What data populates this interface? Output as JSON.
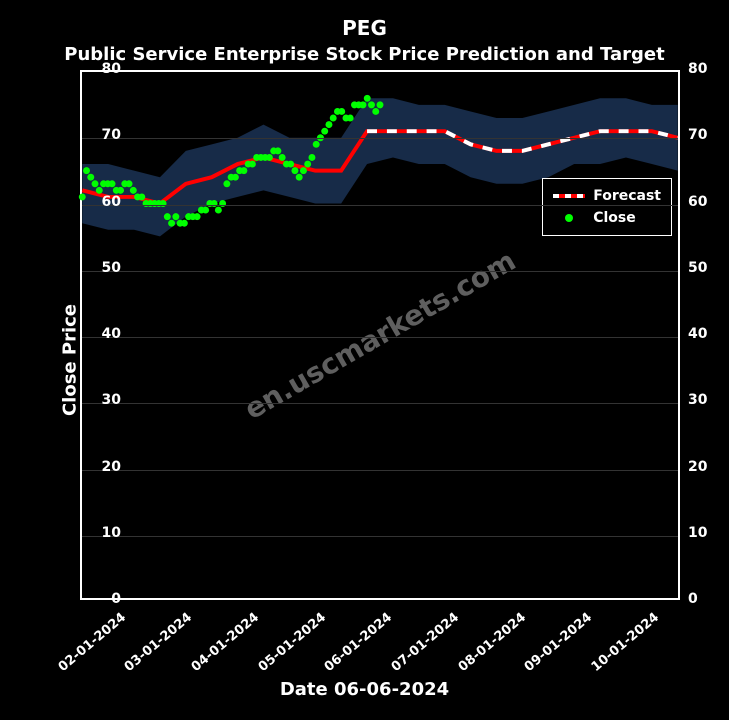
{
  "suptitle": "PEG",
  "title": "Public Service Enterprise Stock Price Prediction and Target",
  "xlabel": "Date 06-06-2024",
  "ylabel": "Close Price",
  "watermark": "en.uscmarkets.com",
  "background_color": "#000000",
  "text_color": "#ffffff",
  "grid_color": "#333333",
  "suptitle_fontsize": 20,
  "title_fontsize": 18,
  "label_fontsize": 18,
  "tick_fontsize": 14,
  "ylim": [
    0,
    80
  ],
  "yticks": [
    0,
    10,
    20,
    30,
    40,
    50,
    60,
    70,
    80
  ],
  "xticks": [
    "02-01-2024",
    "03-01-2024",
    "04-01-2024",
    "05-01-2024",
    "06-01-2024",
    "07-01-2024",
    "08-01-2024",
    "09-01-2024",
    "10-01-2024"
  ],
  "legend": {
    "position": "right-mid",
    "items": [
      {
        "label": "Forecast",
        "type": "line",
        "color": "#ff0000",
        "dash_overlay": "#ffffff"
      },
      {
        "label": "Close",
        "type": "dot",
        "color": "#00ff00"
      }
    ]
  },
  "forecast_band": {
    "color": "#1a3050",
    "opacity": 0.9,
    "upper": [
      66,
      66,
      65,
      64,
      68,
      69,
      70,
      72,
      70,
      70,
      70,
      76,
      76,
      75,
      75,
      74,
      73,
      73,
      74,
      75,
      76,
      76,
      75,
      75
    ],
    "lower": [
      57,
      56,
      56,
      55,
      58,
      60,
      61,
      62,
      61,
      60,
      60,
      66,
      67,
      66,
      66,
      64,
      63,
      63,
      64,
      66,
      66,
      67,
      66,
      65
    ]
  },
  "forecast_line": {
    "color": "#ff0000",
    "dash_color": "#ffffff",
    "width": 4,
    "dash_start_index": 11,
    "y": [
      62,
      61,
      61,
      60,
      63,
      64,
      66,
      67,
      66,
      65,
      65,
      71,
      71,
      71,
      71,
      69,
      68,
      68,
      69,
      70,
      71,
      71,
      71,
      70
    ]
  },
  "close_series": {
    "color": "#00ff00",
    "marker_size": 3.5,
    "points": [
      [
        0,
        61
      ],
      [
        2,
        65
      ],
      [
        4,
        64
      ],
      [
        6,
        63
      ],
      [
        8,
        62
      ],
      [
        10,
        63
      ],
      [
        12,
        63
      ],
      [
        14,
        63
      ],
      [
        16,
        62
      ],
      [
        18,
        62
      ],
      [
        20,
        63
      ],
      [
        22,
        63
      ],
      [
        24,
        62
      ],
      [
        26,
        61
      ],
      [
        28,
        61
      ],
      [
        30,
        60
      ],
      [
        32,
        60
      ],
      [
        34,
        60
      ],
      [
        36,
        60
      ],
      [
        38,
        60
      ],
      [
        40,
        58
      ],
      [
        42,
        57
      ],
      [
        44,
        58
      ],
      [
        46,
        57
      ],
      [
        48,
        57
      ],
      [
        50,
        58
      ],
      [
        52,
        58
      ],
      [
        54,
        58
      ],
      [
        56,
        59
      ],
      [
        58,
        59
      ],
      [
        60,
        60
      ],
      [
        62,
        60
      ],
      [
        64,
        59
      ],
      [
        66,
        60
      ],
      [
        68,
        63
      ],
      [
        70,
        64
      ],
      [
        72,
        64
      ],
      [
        74,
        65
      ],
      [
        76,
        65
      ],
      [
        78,
        66
      ],
      [
        80,
        66
      ],
      [
        82,
        67
      ],
      [
        84,
        67
      ],
      [
        86,
        67
      ],
      [
        88,
        67
      ],
      [
        90,
        68
      ],
      [
        92,
        68
      ],
      [
        94,
        67
      ],
      [
        96,
        66
      ],
      [
        98,
        66
      ],
      [
        100,
        65
      ],
      [
        102,
        64
      ],
      [
        104,
        65
      ],
      [
        106,
        66
      ],
      [
        108,
        67
      ],
      [
        110,
        69
      ],
      [
        112,
        70
      ],
      [
        114,
        71
      ],
      [
        116,
        72
      ],
      [
        118,
        73
      ],
      [
        120,
        74
      ],
      [
        122,
        74
      ],
      [
        124,
        73
      ],
      [
        126,
        73
      ],
      [
        128,
        75
      ],
      [
        130,
        75
      ],
      [
        132,
        75
      ],
      [
        134,
        76
      ],
      [
        136,
        75
      ],
      [
        138,
        74
      ],
      [
        140,
        75
      ]
    ]
  },
  "xdomain_count": 280,
  "close_x_span": 140
}
